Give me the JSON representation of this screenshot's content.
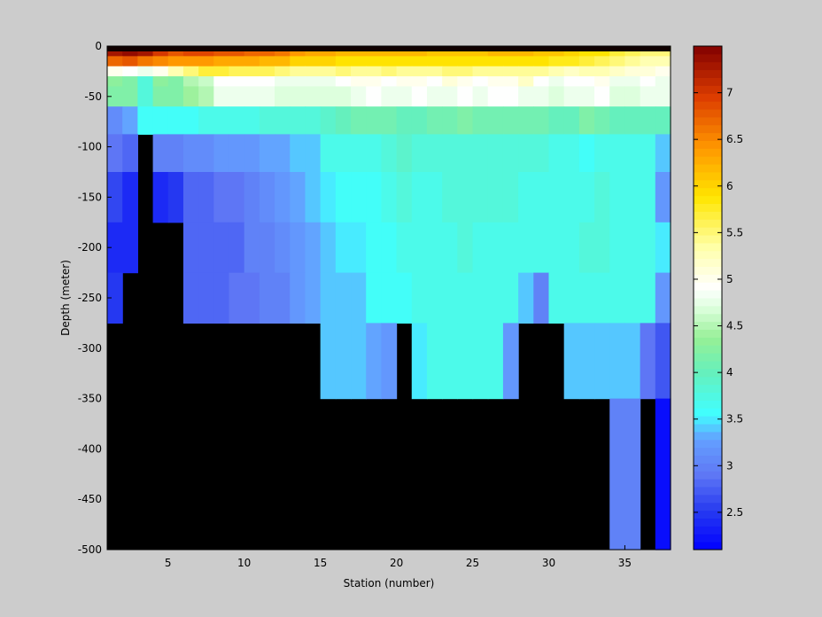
{
  "chart_data": {
    "type": "heatmap",
    "title": "",
    "xlabel": "Station (number)",
    "ylabel": "Depth (meter)",
    "xlim": [
      1,
      38
    ],
    "ylim": [
      -500,
      0
    ],
    "x_ticks": [
      5,
      10,
      15,
      20,
      25,
      30,
      35
    ],
    "y_ticks": [
      0,
      -50,
      -100,
      -150,
      -200,
      -250,
      -300,
      -350,
      -400,
      -450,
      -500
    ],
    "stations": [
      1,
      2,
      3,
      4,
      5,
      6,
      7,
      8,
      9,
      10,
      11,
      12,
      13,
      14,
      15,
      16,
      17,
      18,
      19,
      20,
      21,
      22,
      23,
      24,
      25,
      26,
      27,
      28,
      29,
      30,
      31,
      32,
      33,
      34,
      35,
      36,
      37
    ],
    "depths": [
      -5,
      -15,
      -25,
      -35,
      -45,
      -75,
      -100,
      -150,
      -200,
      -250,
      -300,
      -400
    ],
    "bottom_depths": [
      -250,
      -250,
      -75,
      -150,
      -150,
      -250,
      -250,
      -250,
      -250,
      -250,
      -250,
      -250,
      -250,
      -250,
      -300,
      -300,
      -300,
      -300,
      -300,
      -250,
      -300,
      -300,
      -300,
      -300,
      -300,
      -300,
      -300,
      -250,
      -250,
      -250,
      -300,
      -300,
      -300,
      -400,
      -400,
      -300,
      -400
    ],
    "values": [
      [
        7.3,
        7.4,
        7.3,
        7.0,
        6.8,
        6.9,
        6.9,
        6.8,
        6.8,
        6.7,
        6.7,
        6.6,
        6.4,
        6.3,
        6.3,
        6.2,
        6.2,
        6.2,
        6.2,
        6.2,
        6.2,
        6.1,
        6.1,
        6.1,
        6.1,
        6.2,
        6.2,
        6.2,
        6.1,
        6.1,
        6.0,
        5.9,
        5.9,
        5.7,
        5.6,
        5.5,
        5.5
      ],
      [
        6.7,
        6.8,
        6.6,
        6.5,
        6.4,
        6.4,
        6.4,
        6.3,
        6.3,
        6.3,
        6.2,
        6.2,
        6.0,
        6.0,
        6.0,
        5.9,
        5.9,
        5.9,
        5.9,
        5.9,
        5.9,
        5.9,
        5.9,
        5.9,
        5.9,
        5.9,
        5.9,
        5.9,
        5.9,
        5.8,
        5.8,
        5.7,
        5.6,
        5.5,
        5.4,
        5.3,
        5.3
      ],
      [
        5.0,
        4.9,
        4.8,
        5.0,
        5.3,
        5.5,
        5.7,
        5.7,
        5.6,
        5.6,
        5.6,
        5.5,
        5.4,
        5.4,
        5.4,
        5.5,
        5.4,
        5.4,
        5.5,
        5.4,
        5.4,
        5.4,
        5.5,
        5.5,
        5.4,
        5.4,
        5.4,
        5.4,
        5.4,
        5.3,
        5.2,
        5.3,
        5.3,
        5.2,
        5.1,
        5.1,
        5.0
      ],
      [
        4.3,
        4.2,
        3.8,
        4.3,
        4.2,
        4.5,
        4.6,
        4.9,
        4.9,
        4.9,
        4.9,
        4.8,
        4.8,
        4.8,
        4.8,
        4.9,
        5.0,
        5.0,
        4.9,
        5.0,
        5.0,
        4.9,
        5.1,
        5.0,
        4.9,
        5.0,
        5.0,
        5.2,
        4.9,
        4.8,
        4.9,
        4.9,
        5.0,
        4.8,
        4.8,
        4.9,
        4.8
      ],
      [
        4.2,
        4.2,
        3.8,
        4.2,
        4.2,
        4.4,
        4.5,
        4.8,
        4.8,
        4.8,
        4.8,
        4.7,
        4.7,
        4.7,
        4.7,
        4.7,
        4.8,
        4.9,
        4.8,
        4.8,
        4.9,
        4.8,
        4.8,
        4.9,
        4.8,
        4.9,
        4.9,
        4.8,
        4.8,
        4.7,
        4.8,
        4.8,
        4.9,
        4.7,
        4.7,
        4.8,
        4.8
      ],
      [
        3.1,
        3.3,
        3.6,
        3.6,
        3.6,
        3.6,
        3.7,
        3.7,
        3.7,
        3.7,
        3.8,
        3.8,
        3.8,
        3.8,
        3.9,
        4.0,
        4.1,
        4.1,
        4.1,
        4.0,
        4.0,
        4.1,
        4.1,
        4.2,
        4.1,
        4.1,
        4.1,
        4.1,
        4.1,
        4.0,
        4.0,
        4.2,
        4.1,
        4.0,
        4.0,
        4.0,
        4.0
      ],
      [
        2.9,
        2.8,
        0,
        3.0,
        3.0,
        3.1,
        3.1,
        3.2,
        3.2,
        3.2,
        3.3,
        3.3,
        3.4,
        3.4,
        3.7,
        3.7,
        3.7,
        3.7,
        3.8,
        3.9,
        3.8,
        3.8,
        3.8,
        3.8,
        3.8,
        3.8,
        3.8,
        3.8,
        3.8,
        3.7,
        3.7,
        3.6,
        3.7,
        3.7,
        3.7,
        3.7,
        3.4
      ],
      [
        2.6,
        2.4,
        0,
        2.4,
        2.5,
        2.8,
        2.8,
        2.9,
        2.9,
        3.0,
        3.1,
        3.2,
        3.3,
        3.4,
        3.5,
        3.6,
        3.6,
        3.6,
        3.7,
        3.8,
        3.7,
        3.7,
        3.8,
        3.8,
        3.8,
        3.8,
        3.8,
        3.7,
        3.7,
        3.7,
        3.7,
        3.7,
        3.8,
        3.7,
        3.7,
        3.7,
        3.2
      ],
      [
        2.4,
        2.4,
        0,
        0,
        0,
        2.8,
        2.8,
        2.8,
        2.8,
        3.0,
        3.0,
        3.1,
        3.2,
        3.3,
        3.4,
        3.5,
        3.5,
        3.6,
        3.6,
        3.7,
        3.7,
        3.7,
        3.7,
        3.8,
        3.7,
        3.7,
        3.7,
        3.7,
        3.7,
        3.7,
        3.7,
        3.8,
        3.8,
        3.7,
        3.7,
        3.7,
        3.5
      ],
      [
        2.5,
        0,
        0,
        0,
        0,
        2.8,
        2.8,
        2.8,
        2.9,
        2.9,
        3.0,
        3.0,
        3.2,
        3.3,
        3.4,
        3.4,
        3.4,
        3.6,
        3.6,
        3.6,
        3.7,
        3.7,
        3.7,
        3.7,
        3.7,
        3.7,
        3.7,
        3.4,
        3.0,
        3.7,
        3.7,
        3.7,
        3.7,
        3.7,
        3.7,
        3.7,
        3.2
      ],
      [
        0,
        0,
        0,
        0,
        0,
        0,
        0,
        0,
        0,
        0,
        0,
        0,
        0,
        0,
        3.4,
        3.4,
        3.4,
        3.3,
        3.2,
        0,
        3.5,
        3.7,
        3.7,
        3.7,
        3.7,
        3.7,
        3.2,
        0,
        0,
        0,
        3.4,
        3.4,
        3.4,
        3.4,
        3.4,
        2.9,
        2.7
      ],
      [
        0,
        0,
        0,
        0,
        0,
        0,
        0,
        0,
        0,
        0,
        0,
        0,
        0,
        0,
        0,
        0,
        0,
        0,
        0,
        0,
        0,
        0,
        0,
        0,
        0,
        0,
        0,
        0,
        0,
        0,
        0,
        0,
        0,
        3.0,
        3.0,
        0,
        2.2
      ]
    ],
    "colorbar": {
      "min": 2.1,
      "max": 7.5,
      "ticks": [
        2.5,
        3,
        3.5,
        4,
        4.5,
        5,
        5.5,
        6,
        6.5,
        7
      ],
      "colormap": "jet-like (blue-cyan-green-white-yellow-orange-red)"
    },
    "missing_color": "#000000",
    "grid": false
  }
}
